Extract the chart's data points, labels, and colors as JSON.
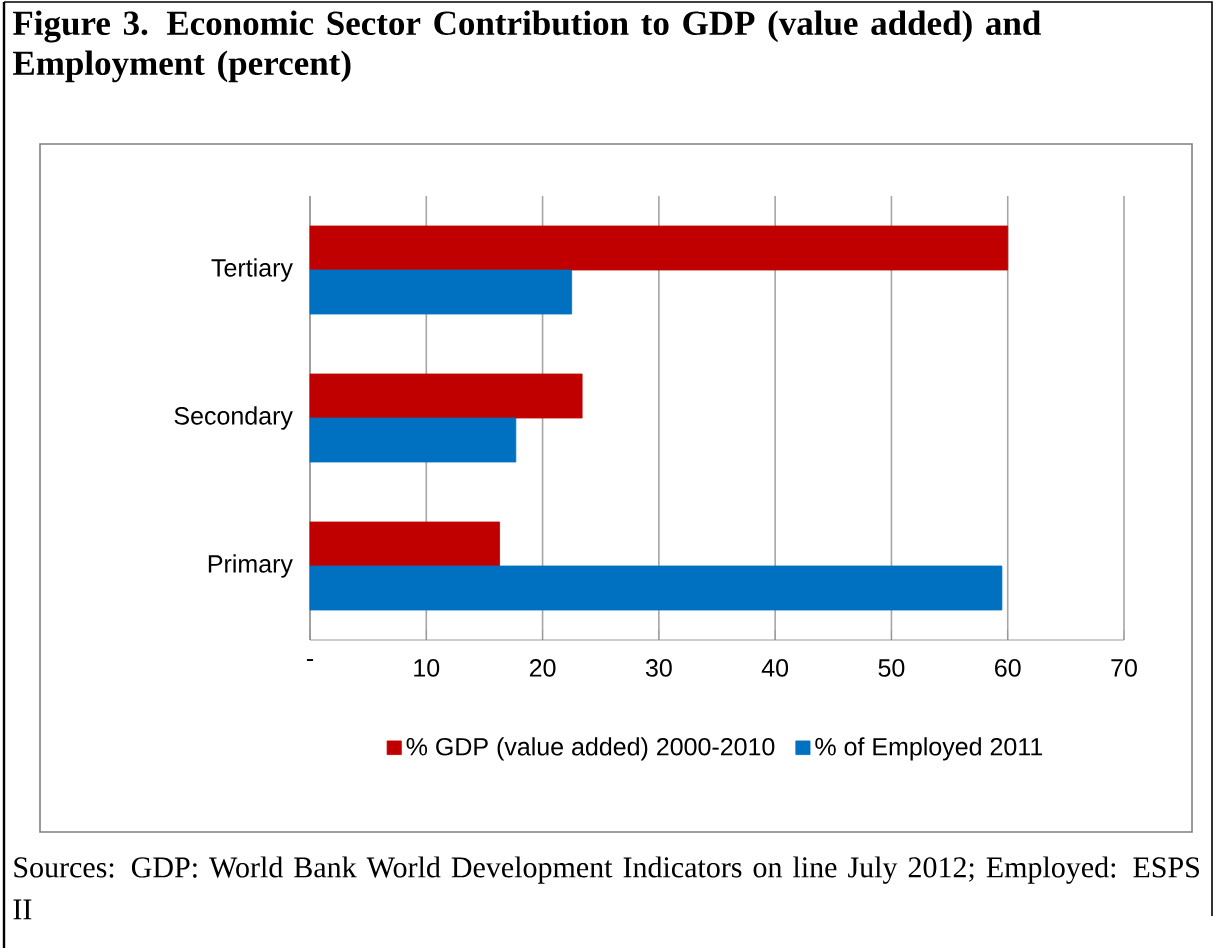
{
  "chart_data": {
    "type": "bar",
    "orientation": "horizontal",
    "title": "Figure 3. Economic Sector Contribution to GDP (value added) and Employment (percent)",
    "categories": [
      "Tertiary",
      "Secondary",
      "Primary"
    ],
    "series": [
      {
        "name": "% GDP (value added) 2000-2010",
        "color": "#c00000",
        "values": [
          60,
          23.4,
          16.3
        ]
      },
      {
        "name": "% of Employed 2011",
        "color": "#0070c0",
        "values": [
          22.5,
          17.7,
          59.5
        ]
      }
    ],
    "xlim": [
      0,
      70
    ],
    "xticks": [
      {
        "value": 0,
        "label": "-"
      },
      10,
      20,
      30,
      40,
      50,
      60,
      70
    ],
    "grid": "x",
    "legend": "bottom",
    "annotations": [
      "Sources: GDP: World Bank World Development Indicators on line July 2012; Employed: ESPS II"
    ]
  }
}
